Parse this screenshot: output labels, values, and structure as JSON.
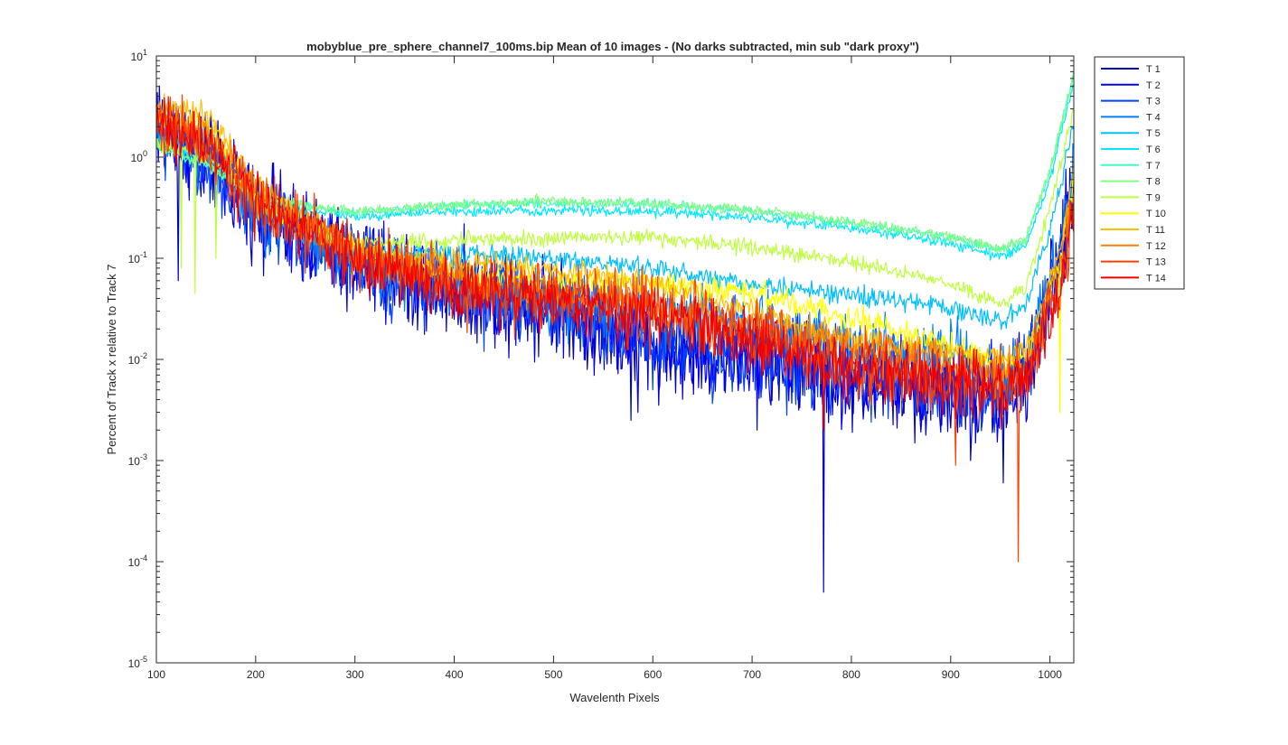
{
  "figure": {
    "title": "mobyblue_pre_sphere_channel7_100ms.bip  Mean of 10 images - (No darks subtracted, min sub \"dark proxy\")"
  },
  "chart_data": {
    "type": "line",
    "title": "mobyblue_pre_sphere_channel7_100ms.bip  Mean of 10 images - (No darks subtracted, min sub \"dark proxy\")",
    "xlabel": "Wavelenth Pixels",
    "ylabel": "Percent of Track x relative to Track 7",
    "xlim": [
      100,
      1024
    ],
    "ylim": [
      1e-05,
      10
    ],
    "yscale": "log",
    "grid": false,
    "legend_position": "outside-right",
    "x_ticks": [
      {
        "value": 100,
        "label": "100"
      },
      {
        "value": 200,
        "label": "200"
      },
      {
        "value": 300,
        "label": "300"
      },
      {
        "value": 400,
        "label": "400"
      },
      {
        "value": 500,
        "label": "500"
      },
      {
        "value": 600,
        "label": "600"
      },
      {
        "value": 700,
        "label": "700"
      },
      {
        "value": 800,
        "label": "800"
      },
      {
        "value": 900,
        "label": "900"
      },
      {
        "value": 1000,
        "label": "1000"
      }
    ],
    "y_ticks": [
      {
        "value": 10,
        "base": "10",
        "exp": "1"
      },
      {
        "value": 1,
        "base": "10",
        "exp": "0"
      },
      {
        "value": 0.1,
        "base": "10",
        "exp": "-1"
      },
      {
        "value": 0.01,
        "base": "10",
        "exp": "-2"
      },
      {
        "value": 0.001,
        "base": "10",
        "exp": "-3"
      },
      {
        "value": 0.0001,
        "base": "10",
        "exp": "-4"
      },
      {
        "value": 1e-05,
        "base": "10",
        "exp": "-5"
      }
    ],
    "series": [
      {
        "name": "T 1",
        "color": "#0000c8",
        "noise": 0.45,
        "points": [
          [
            100,
            2.2
          ],
          [
            160,
            0.8
          ],
          [
            200,
            0.3
          ],
          [
            300,
            0.09
          ],
          [
            400,
            0.05
          ],
          [
            500,
            0.035
          ],
          [
            580,
            0.015
          ],
          [
            650,
            0.012
          ],
          [
            750,
            0.009
          ],
          [
            800,
            0.006
          ],
          [
            900,
            0.005
          ],
          [
            950,
            0.004
          ],
          [
            980,
            0.008
          ],
          [
            1010,
            0.1
          ],
          [
            1024,
            0.5
          ]
        ],
        "spikes": [
          [
            122,
            0.06
          ],
          [
            772,
            5e-05
          ],
          [
            953,
            0.0006
          ],
          [
            578,
            0.0025
          ],
          [
            320,
            0.03
          ]
        ]
      },
      {
        "name": "T 2",
        "color": "#0000f0",
        "noise": 0.45,
        "points": [
          [
            100,
            2.0
          ],
          [
            160,
            0.75
          ],
          [
            200,
            0.28
          ],
          [
            300,
            0.085
          ],
          [
            400,
            0.045
          ],
          [
            500,
            0.032
          ],
          [
            580,
            0.014
          ],
          [
            650,
            0.011
          ],
          [
            750,
            0.0085
          ],
          [
            800,
            0.006
          ],
          [
            900,
            0.005
          ],
          [
            950,
            0.004
          ],
          [
            980,
            0.008
          ],
          [
            1010,
            0.09
          ],
          [
            1024,
            0.45
          ]
        ],
        "spikes": [
          [
            705,
            0.002
          ],
          [
            585,
            0.003
          ],
          [
            920,
            0.001
          ]
        ]
      },
      {
        "name": "T 3",
        "color": "#0040ff",
        "noise": 0.4,
        "points": [
          [
            100,
            1.8
          ],
          [
            160,
            0.7
          ],
          [
            200,
            0.27
          ],
          [
            300,
            0.085
          ],
          [
            400,
            0.05
          ],
          [
            500,
            0.035
          ],
          [
            580,
            0.018
          ],
          [
            650,
            0.013
          ],
          [
            750,
            0.009
          ],
          [
            800,
            0.007
          ],
          [
            900,
            0.0055
          ],
          [
            950,
            0.0045
          ],
          [
            980,
            0.009
          ],
          [
            1010,
            0.1
          ],
          [
            1024,
            0.55
          ]
        ],
        "spikes": [
          [
            370,
            0.02
          ],
          [
            430,
            0.012
          ],
          [
            600,
            0.005
          ]
        ]
      },
      {
        "name": "T 4",
        "color": "#0080ff",
        "noise": 0.3,
        "points": [
          [
            100,
            1.6
          ],
          [
            150,
            1.2
          ],
          [
            200,
            0.3
          ],
          [
            300,
            0.1
          ],
          [
            400,
            0.055
          ],
          [
            500,
            0.038
          ],
          [
            600,
            0.03
          ],
          [
            700,
            0.022
          ],
          [
            800,
            0.014
          ],
          [
            900,
            0.011
          ],
          [
            950,
            0.0065
          ],
          [
            980,
            0.012
          ],
          [
            1010,
            0.15
          ],
          [
            1024,
            0.7
          ]
        ],
        "spikes": [
          [
            210,
            0.1
          ],
          [
            350,
            0.03
          ]
        ]
      },
      {
        "name": "T 5",
        "color": "#00bfff",
        "noise": 0.1,
        "points": [
          [
            100,
            1.5
          ],
          [
            150,
            1.0
          ],
          [
            200,
            0.35
          ],
          [
            250,
            0.16
          ],
          [
            300,
            0.12
          ],
          [
            400,
            0.11
          ],
          [
            500,
            0.1
          ],
          [
            600,
            0.08
          ],
          [
            700,
            0.055
          ],
          [
            800,
            0.043
          ],
          [
            900,
            0.033
          ],
          [
            950,
            0.023
          ],
          [
            975,
            0.035
          ],
          [
            1000,
            0.2
          ],
          [
            1024,
            2.0
          ]
        ],
        "spikes": []
      },
      {
        "name": "T 6",
        "color": "#00e8ff",
        "noise": 0.05,
        "points": [
          [
            100,
            1.4
          ],
          [
            150,
            0.9
          ],
          [
            200,
            0.38
          ],
          [
            250,
            0.3
          ],
          [
            300,
            0.26
          ],
          [
            400,
            0.29
          ],
          [
            500,
            0.3
          ],
          [
            600,
            0.29
          ],
          [
            700,
            0.25
          ],
          [
            800,
            0.2
          ],
          [
            900,
            0.14
          ],
          [
            950,
            0.105
          ],
          [
            975,
            0.13
          ],
          [
            1000,
            0.6
          ],
          [
            1024,
            5.5
          ]
        ],
        "spikes": []
      },
      {
        "name": "T 7",
        "color": "#40ffbf",
        "noise": 0.05,
        "points": [
          [
            100,
            1.3
          ],
          [
            150,
            0.85
          ],
          [
            200,
            0.4
          ],
          [
            250,
            0.33
          ],
          [
            300,
            0.28
          ],
          [
            400,
            0.33
          ],
          [
            500,
            0.35
          ],
          [
            600,
            0.34
          ],
          [
            700,
            0.29
          ],
          [
            800,
            0.22
          ],
          [
            900,
            0.16
          ],
          [
            950,
            0.12
          ],
          [
            975,
            0.15
          ],
          [
            1000,
            0.7
          ],
          [
            1024,
            6.5
          ]
        ],
        "spikes": []
      },
      {
        "name": "T 8",
        "color": "#80ff80",
        "noise": 0.05,
        "points": [
          [
            100,
            1.3
          ],
          [
            150,
            0.85
          ],
          [
            200,
            0.42
          ],
          [
            250,
            0.33
          ],
          [
            300,
            0.29
          ],
          [
            400,
            0.34
          ],
          [
            500,
            0.37
          ],
          [
            600,
            0.35
          ],
          [
            700,
            0.3
          ],
          [
            800,
            0.23
          ],
          [
            900,
            0.165
          ],
          [
            950,
            0.125
          ],
          [
            975,
            0.155
          ],
          [
            1000,
            0.75
          ],
          [
            1024,
            6.8
          ]
        ],
        "spikes": []
      },
      {
        "name": "T 9",
        "color": "#bfff40",
        "noise": 0.08,
        "points": [
          [
            100,
            1.4
          ],
          [
            150,
            1.0
          ],
          [
            200,
            0.4
          ],
          [
            250,
            0.2
          ],
          [
            300,
            0.14
          ],
          [
            400,
            0.15
          ],
          [
            500,
            0.16
          ],
          [
            600,
            0.16
          ],
          [
            700,
            0.13
          ],
          [
            800,
            0.09
          ],
          [
            900,
            0.055
          ],
          [
            950,
            0.035
          ],
          [
            975,
            0.05
          ],
          [
            1000,
            0.3
          ],
          [
            1024,
            3.0
          ]
        ],
        "spikes": [
          [
            125,
            0.08
          ],
          [
            139,
            0.045
          ],
          [
            160,
            0.1
          ]
        ]
      },
      {
        "name": "T 10",
        "color": "#ffff00",
        "noise": 0.12,
        "points": [
          [
            100,
            2.4
          ],
          [
            150,
            2.0
          ],
          [
            200,
            0.35
          ],
          [
            300,
            0.12
          ],
          [
            400,
            0.07
          ],
          [
            500,
            0.06
          ],
          [
            600,
            0.055
          ],
          [
            700,
            0.045
          ],
          [
            800,
            0.025
          ],
          [
            900,
            0.014
          ],
          [
            950,
            0.009
          ],
          [
            980,
            0.012
          ],
          [
            1010,
            0.1
          ],
          [
            1024,
            0.6
          ]
        ],
        "spikes": [
          [
            1010,
            0.003
          ]
        ]
      },
      {
        "name": "T 11",
        "color": "#ffbf00",
        "noise": 0.12,
        "points": [
          [
            100,
            3.0
          ],
          [
            150,
            2.8
          ],
          [
            200,
            0.5
          ],
          [
            300,
            0.13
          ],
          [
            400,
            0.09
          ],
          [
            500,
            0.075
          ],
          [
            600,
            0.06
          ],
          [
            700,
            0.03
          ],
          [
            800,
            0.015
          ],
          [
            900,
            0.012
          ],
          [
            950,
            0.01
          ],
          [
            980,
            0.015
          ],
          [
            1010,
            0.12
          ],
          [
            1024,
            0.8
          ]
        ],
        "spikes": []
      },
      {
        "name": "T 12",
        "color": "#ff8000",
        "noise": 0.2,
        "points": [
          [
            100,
            2.5
          ],
          [
            150,
            1.6
          ],
          [
            200,
            0.4
          ],
          [
            300,
            0.11
          ],
          [
            400,
            0.06
          ],
          [
            500,
            0.045
          ],
          [
            600,
            0.035
          ],
          [
            700,
            0.022
          ],
          [
            800,
            0.013
          ],
          [
            900,
            0.009
          ],
          [
            950,
            0.007
          ],
          [
            980,
            0.01
          ],
          [
            1010,
            0.08
          ],
          [
            1024,
            0.5
          ]
        ],
        "spikes": []
      },
      {
        "name": "T 13",
        "color": "#ff4000",
        "noise": 0.35,
        "points": [
          [
            100,
            2.3
          ],
          [
            150,
            1.3
          ],
          [
            200,
            0.38
          ],
          [
            300,
            0.1
          ],
          [
            400,
            0.055
          ],
          [
            500,
            0.04
          ],
          [
            600,
            0.03
          ],
          [
            700,
            0.018
          ],
          [
            800,
            0.009
          ],
          [
            900,
            0.006
          ],
          [
            950,
            0.005
          ],
          [
            980,
            0.008
          ],
          [
            1010,
            0.06
          ],
          [
            1024,
            0.35
          ]
        ],
        "spikes": [
          [
            968,
            0.0001
          ],
          [
            905,
            0.0009
          ]
        ]
      },
      {
        "name": "T 14",
        "color": "#f00000",
        "noise": 0.3,
        "points": [
          [
            100,
            2.2
          ],
          [
            150,
            1.2
          ],
          [
            200,
            0.36
          ],
          [
            300,
            0.1
          ],
          [
            400,
            0.05
          ],
          [
            500,
            0.035
          ],
          [
            600,
            0.028
          ],
          [
            700,
            0.016
          ],
          [
            800,
            0.008
          ],
          [
            900,
            0.006
          ],
          [
            950,
            0.005
          ],
          [
            980,
            0.008
          ],
          [
            1010,
            0.05
          ],
          [
            1024,
            0.3
          ]
        ],
        "spikes": [
          [
            772,
            0.002
          ]
        ]
      }
    ]
  }
}
